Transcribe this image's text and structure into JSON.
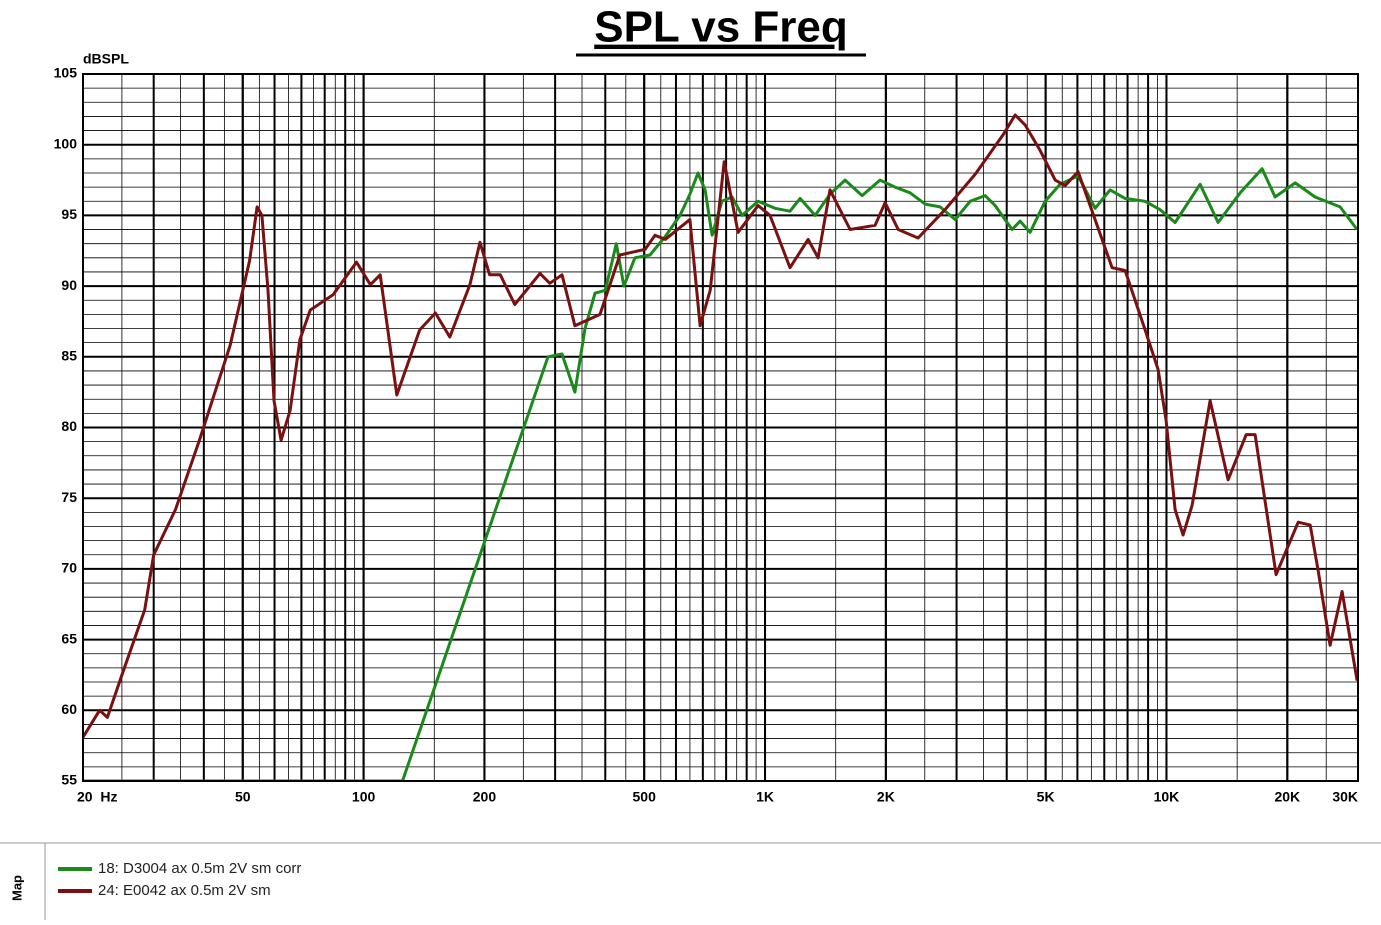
{
  "chart_data": {
    "type": "line",
    "title": "SPL vs Freq",
    "ylabel": "dBSPL",
    "log_x": true,
    "grid": true,
    "xlim": [
      20,
      30000
    ],
    "ylim": [
      55,
      105
    ],
    "xticks": [
      {
        "value": 20,
        "label": "20  Hz"
      },
      50,
      100,
      200,
      500,
      {
        "value": 1000,
        "label": "1K"
      },
      {
        "value": 2000,
        "label": "2K"
      },
      {
        "value": 5000,
        "label": "5K"
      },
      {
        "value": 10000,
        "label": "10K"
      },
      {
        "value": 20000,
        "label": "20K"
      },
      {
        "value": 30000,
        "label": "30K"
      }
    ],
    "yticks": [
      55,
      60,
      65,
      70,
      75,
      80,
      85,
      90,
      95,
      100,
      105
    ],
    "legend_title": "Map",
    "legend": "bottom-left",
    "series": [
      {
        "name": "18: D3004 ax 0.5m 2V sm corr",
        "color": "#1a8a1a",
        "x": [
          20,
          125,
          288,
          312,
          336,
          356,
          377,
          400,
          426,
          445,
          474,
          517,
          564,
          614,
          650,
          681,
          709,
          738,
          781,
          828,
          877,
          961,
          1059,
          1154,
          1223,
          1333,
          1452,
          1583,
          1745,
          1934,
          2108,
          2298,
          2505,
          2729,
          2976,
          3243,
          3534,
          3742,
          4126,
          4318,
          4574,
          4986,
          5433,
          6024,
          6640,
          7237,
          7890,
          8845,
          9640,
          10507,
          12130,
          13450,
          15260,
          17310,
          18650,
          20920,
          23460,
          27080,
          29848
        ],
        "values": [
          55,
          55,
          85,
          85.2,
          82.5,
          87,
          89.5,
          89.7,
          93,
          90,
          92,
          92.2,
          93.5,
          95,
          96.5,
          98,
          96.8,
          93.6,
          96,
          96.3,
          95,
          96,
          95.5,
          95.3,
          96.2,
          95,
          96.5,
          97.5,
          96.4,
          97.5,
          97,
          96.6,
          95.8,
          95.6,
          94.7,
          96,
          96.4,
          95.7,
          94,
          94.6,
          93.8,
          96,
          97.2,
          97.8,
          95.5,
          96.8,
          96.2,
          96,
          95.4,
          94.5,
          97.2,
          94.5,
          96.6,
          98.3,
          96.3,
          97.3,
          96.3,
          95.6,
          94
        ]
      },
      {
        "name": "24: E0042 ax 0.5m 2V sm",
        "color": "#7a1010",
        "x": [
          20,
          22,
          23,
          25,
          28.5,
          30,
          34,
          39,
          46.5,
          52,
          54.3,
          55.8,
          57.8,
          59.8,
          62.3,
          65.6,
          69.4,
          73.6,
          84,
          96,
          104,
          110,
          121,
          138,
          151,
          164,
          184,
          195,
          206,
          219,
          238,
          275,
          291,
          312,
          336,
          388,
          435,
          503,
          532,
          564,
          650,
          689,
          730,
          791,
          857,
          961,
          1029,
          1154,
          1280,
          1356,
          1452,
          1629,
          1880,
          1991,
          2146,
          2406,
          2808,
          3336,
          3918,
          4198,
          4446,
          4844,
          5281,
          5592,
          6024,
          6453,
          7321,
          7890,
          8845,
          9533,
          9980,
          10507,
          11000,
          11583,
          12846,
          14240,
          15795,
          16630,
          18756,
          21288,
          22807,
          23868,
          25570,
          27390,
          29848
        ],
        "values": [
          58.1,
          60,
          59.5,
          62.5,
          67.1,
          71,
          74.2,
          79.1,
          85.8,
          91.8,
          95.6,
          95,
          89.7,
          81.9,
          79.1,
          81.2,
          86.2,
          88.3,
          89.4,
          91.7,
          90.1,
          90.8,
          82.3,
          86.9,
          88.1,
          86.4,
          90.1,
          93.1,
          90.8,
          90.8,
          88.7,
          90.9,
          90.2,
          90.8,
          87.2,
          88,
          92.2,
          92.6,
          93.6,
          93.3,
          94.7,
          87.2,
          89.7,
          98.8,
          93.8,
          95.7,
          95,
          91.3,
          93.3,
          92,
          96.8,
          94,
          94.3,
          95.9,
          94,
          93.4,
          95.4,
          97.9,
          100.7,
          102.1,
          101.4,
          99.6,
          97.5,
          97.1,
          98.1,
          95.7,
          91.3,
          91.1,
          86.9,
          84.1,
          80.5,
          74.2,
          72.4,
          74.5,
          81.9,
          76.3,
          79.5,
          79.5,
          69.6,
          73.3,
          73.1,
          69.9,
          64.6,
          68.4,
          62.1
        ]
      }
    ]
  }
}
